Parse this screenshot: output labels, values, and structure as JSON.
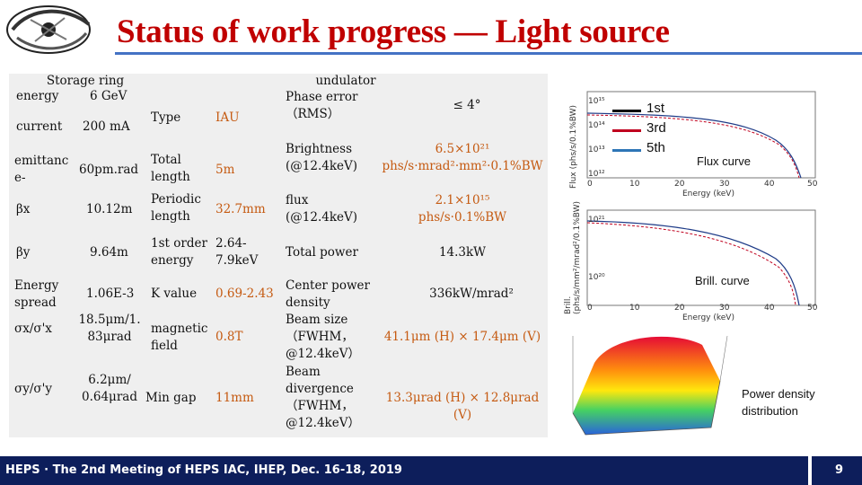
{
  "title": "Status of work progress — Light source",
  "table": {
    "storage_ring_header": "Storage ring",
    "undulator_header": "undulator",
    "left_rows": [
      {
        "label": "energy",
        "value": "6 GeV"
      },
      {
        "label": "current",
        "value": "200 mA"
      },
      {
        "label": "emittanc e-",
        "value": "60pm.rad"
      },
      {
        "label": "βx",
        "value": "10.12m"
      },
      {
        "label": "βy",
        "value": "9.64m"
      },
      {
        "label": "Energy spread",
        "value": "1.06E-3"
      },
      {
        "label": "σx/σ'x",
        "value": "18.5μm/1. 83μrad"
      },
      {
        "label": "σy/σ'y",
        "value": "6.2μm/ 0.64μrad"
      }
    ],
    "mid_rows": [
      {
        "label": "Type",
        "value": "IAU"
      },
      {
        "label": "Total length",
        "value": "5m"
      },
      {
        "label": "Periodic length",
        "value": "32.7mm"
      },
      {
        "label": "1st order energy",
        "value": "2.64-7.9keV"
      },
      {
        "label": "K value",
        "value": "0.69-2.43"
      },
      {
        "label": "magnetic field",
        "value": "0.8T"
      },
      {
        "label": "Min gap",
        "value": "11mm"
      }
    ],
    "right_rows": [
      {
        "label": "Phase error（RMS）",
        "value": "≤ 4°"
      },
      {
        "label": "Brightness (@12.4keV)",
        "value": "6.5×10²¹ phs/s·mrad²·mm²·0.1%BW"
      },
      {
        "label": "flux (@12.4keV)",
        "value": "2.1×10¹⁵ phs/s·0.1%BW"
      },
      {
        "label": "Total power",
        "value": "14.3kW"
      },
      {
        "label": "Center power density",
        "value": "336kW/mrad²"
      },
      {
        "label": "Beam size（FWHM，@12.4keV）",
        "value": "41.1μm (H) × 17.4μm (V)"
      },
      {
        "label": "Beam divergence（FWHM，@12.4keV）",
        "value": "13.3μrad (H) × 12.8μrad (V)"
      }
    ]
  },
  "flux_plot": {
    "ylabel": "Flux (phs/s/0.1%BW)",
    "xlabel": "Energy (keV)",
    "xticks": [
      "0",
      "10",
      "20",
      "30",
      "40",
      "50"
    ],
    "yticks": [
      "10¹⁵",
      "10¹⁴",
      "10¹³",
      "10¹²"
    ]
  },
  "brill_plot": {
    "ylabel": "Brill. (phs/s/mm²/mrad²/0.1%BW)",
    "xlabel": "Energy (keV)",
    "xticks": [
      "0",
      "10",
      "20",
      "30",
      "40",
      "50"
    ],
    "yticks": [
      "10²¹",
      "10²⁰"
    ]
  },
  "legend": {
    "items": [
      {
        "label": "1st",
        "color": "#000000"
      },
      {
        "label": "3rd",
        "color": "#c0001e"
      },
      {
        "label": "5th",
        "color": "#2e75b6"
      }
    ]
  },
  "captions": {
    "flux": "Flux curve",
    "brill": "Brill. curve",
    "power": "Power density distribution"
  },
  "footer": {
    "text": "HEPS · The 2nd Meeting of HEPS IAC, IHEP, Dec. 16-18, 2019",
    "page": "9"
  }
}
